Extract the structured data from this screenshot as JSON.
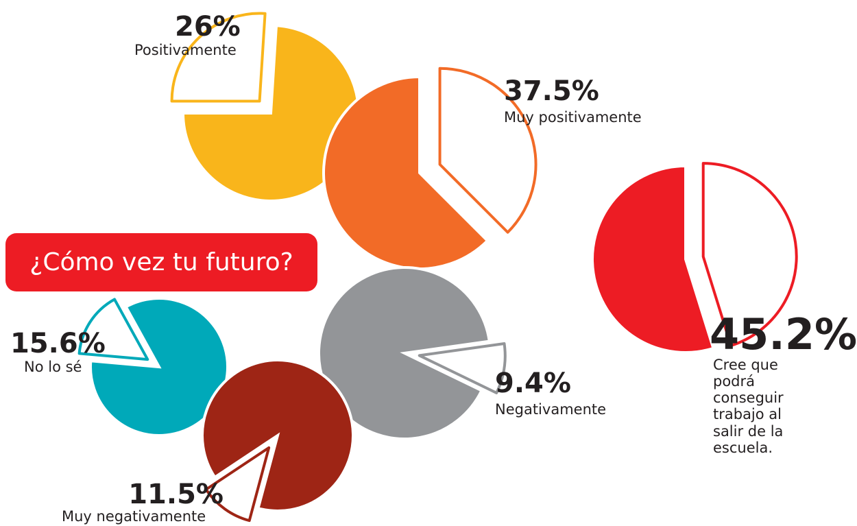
{
  "chart_data": {
    "type": "pie",
    "title": "¿Cómo vez tu futuro?",
    "categories": [
      "Positivamente",
      "Muy positivamente",
      "Cree que podrá conseguir trabajo al salir de la escuela.",
      "Negativamente",
      "No lo sé",
      "Muy negativamente"
    ],
    "values": [
      26,
      37.5,
      45.2,
      9.4,
      15.6,
      11.5
    ],
    "value_labels": [
      "26%",
      "37.5%",
      "45.2%",
      "9.4%",
      "15.6%",
      "11.5%"
    ],
    "colors": [
      "#f9b51b",
      "#f26b27",
      "#ed1c24",
      "#939598",
      "#00a9b9",
      "#9e2515"
    ]
  }
}
